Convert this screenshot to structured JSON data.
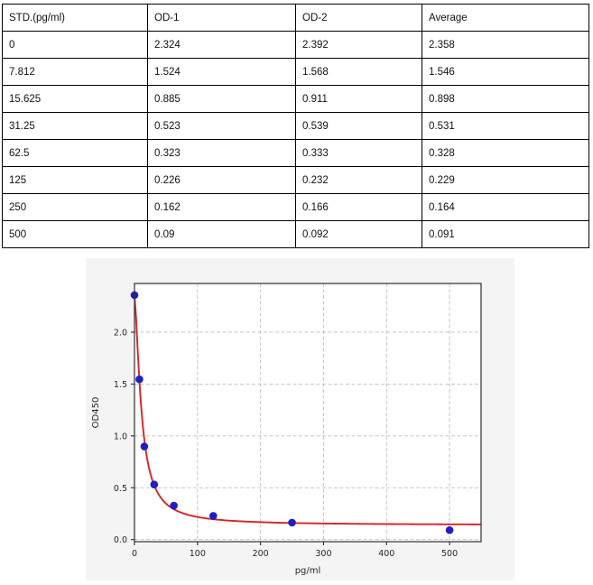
{
  "table": {
    "headers": [
      "STD.(pg/ml)",
      "OD-1",
      "OD-2",
      "Average"
    ],
    "rows": [
      [
        "0",
        "2.324",
        "2.392",
        "2.358"
      ],
      [
        "7.812",
        "1.524",
        "1.568",
        "1.546"
      ],
      [
        "15.625",
        "0.885",
        "0.911",
        "0.898"
      ],
      [
        "31.25",
        "0.523",
        "0.539",
        "0.531"
      ],
      [
        "62.5",
        "0.323",
        "0.333",
        "0.328"
      ],
      [
        "125",
        "0.226",
        "0.232",
        "0.229"
      ],
      [
        "250",
        "0.162",
        "0.166",
        "0.164"
      ],
      [
        "500",
        "0.09",
        "0.092",
        "0.091"
      ]
    ]
  },
  "chart_data": {
    "type": "scatter",
    "title": "",
    "xlabel": "pg/ml",
    "ylabel": "OD450",
    "x": [
      0,
      7.812,
      15.625,
      31.25,
      62.5,
      125,
      250,
      500
    ],
    "y": [
      2.358,
      1.546,
      0.898,
      0.531,
      0.328,
      0.229,
      0.164,
      0.091
    ],
    "xlim": [
      0,
      550
    ],
    "ylim": [
      -0.02,
      2.47
    ],
    "xticks": [
      0,
      100,
      200,
      300,
      400,
      500
    ],
    "yticks": [
      0,
      0.5,
      1,
      1.5,
      2
    ],
    "xtick_labels": [
      "0",
      "100",
      "200",
      "300",
      "400",
      "500"
    ],
    "ytick_labels": [
      "0.0",
      "0.5",
      "1.0",
      "1.5",
      "2.0"
    ],
    "grid": true,
    "legend": "none",
    "fit_curve": {
      "model": "4PL",
      "a": 2.358,
      "b": 1.5,
      "c": 11,
      "d": 0.14
    },
    "colors": {
      "point": "#1e1ec8",
      "curve": "#dd2222",
      "figure_bg": "#f4f4f4",
      "plot_bg": "#ffffff",
      "grid": "#bfbfbf",
      "spine": "#2e2e2e"
    }
  }
}
